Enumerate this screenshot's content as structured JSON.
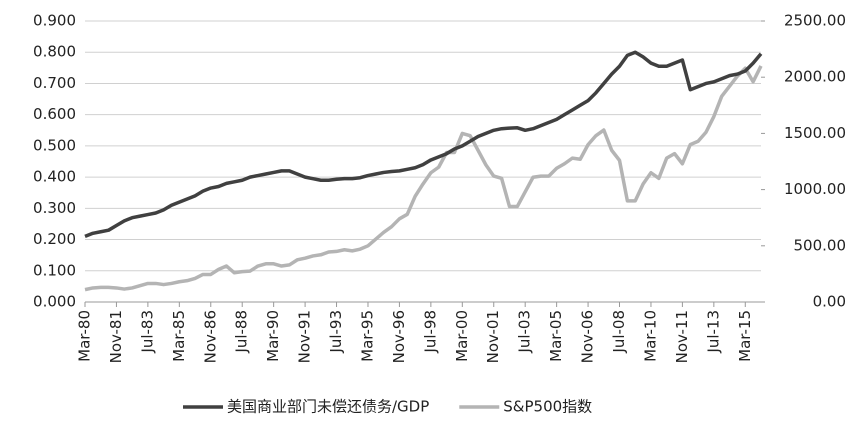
{
  "chart_data": {
    "type": "line",
    "categories": [
      "Mar-80",
      null,
      null,
      null,
      "Nov-81",
      null,
      null,
      null,
      "Jul-83",
      null,
      null,
      null,
      "Mar-85",
      null,
      null,
      null,
      "Nov-86",
      null,
      null,
      null,
      "Jul-88",
      null,
      null,
      null,
      "Mar-90",
      null,
      null,
      null,
      "Nov-91",
      null,
      null,
      null,
      "Jul-93",
      null,
      null,
      null,
      "Mar-95",
      null,
      null,
      null,
      "Nov-96",
      null,
      null,
      null,
      "Jul-98",
      null,
      null,
      null,
      "Mar-00",
      null,
      null,
      null,
      "Nov-01",
      null,
      null,
      null,
      "Jul-03",
      null,
      null,
      null,
      "Mar-05",
      null,
      null,
      null,
      "Nov-06",
      null,
      null,
      null,
      "Jul-08",
      null,
      null,
      null,
      "Mar-10",
      null,
      null,
      null,
      "Nov-11",
      null,
      null,
      null,
      "Jul-13",
      null,
      null,
      null,
      "Mar-15",
      null,
      null
    ],
    "series": [
      {
        "name": "美国商业部门未偿还债务/GDP",
        "color": "#404040",
        "axis": "y",
        "values": [
          0.21,
          0.22,
          0.225,
          0.23,
          0.245,
          0.26,
          0.27,
          0.275,
          0.28,
          0.285,
          0.295,
          0.31,
          0.32,
          0.33,
          0.34,
          0.355,
          0.365,
          0.37,
          0.38,
          0.385,
          0.39,
          0.4,
          0.405,
          0.41,
          0.415,
          0.42,
          0.42,
          0.41,
          0.4,
          0.395,
          0.39,
          0.39,
          0.393,
          0.395,
          0.395,
          0.398,
          0.405,
          0.41,
          0.415,
          0.418,
          0.42,
          0.425,
          0.43,
          0.44,
          0.455,
          0.465,
          0.475,
          0.49,
          0.5,
          0.515,
          0.53,
          0.54,
          0.55,
          0.555,
          0.557,
          0.558,
          0.55,
          0.555,
          0.565,
          0.575,
          0.585,
          0.6,
          0.615,
          0.63,
          0.645,
          0.67,
          0.7,
          0.73,
          0.755,
          0.79,
          0.8,
          0.785,
          0.765,
          0.755,
          0.755,
          0.765,
          0.775,
          0.68,
          0.69,
          0.7,
          0.705,
          0.715,
          0.725,
          0.73,
          0.74,
          0.765,
          0.795
        ]
      },
      {
        "name": "S&P500指数",
        "color": "#b4b4b4",
        "axis": "y2",
        "values": [
          110,
          125,
          130,
          130,
          125,
          115,
          125,
          145,
          165,
          165,
          155,
          165,
          180,
          190,
          210,
          245,
          245,
          290,
          320,
          260,
          270,
          275,
          320,
          340,
          340,
          320,
          330,
          375,
          390,
          410,
          420,
          445,
          450,
          465,
          455,
          470,
          500,
          560,
          620,
          670,
          740,
          780,
          940,
          1050,
          1150,
          1200,
          1330,
          1330,
          1500,
          1480,
          1350,
          1220,
          1120,
          1100,
          850,
          850,
          980,
          1110,
          1120,
          1120,
          1190,
          1230,
          1280,
          1270,
          1400,
          1480,
          1530,
          1350,
          1260,
          900,
          900,
          1050,
          1150,
          1100,
          1280,
          1320,
          1230,
          1400,
          1430,
          1510,
          1650,
          1830,
          1920,
          2010,
          2080,
          1960,
          2100
        ]
      }
    ],
    "ylim": [
      0,
      0.9
    ],
    "yticks": [
      {
        "value": 0,
        "label": "0.000"
      },
      {
        "value": 0.1,
        "label": "0.100"
      },
      {
        "value": 0.2,
        "label": "0.200"
      },
      {
        "value": 0.3,
        "label": "0.300"
      },
      {
        "value": 0.4,
        "label": "0.400"
      },
      {
        "value": 0.5,
        "label": "0.500"
      },
      {
        "value": 0.6,
        "label": "0.600"
      },
      {
        "value": 0.7,
        "label": "0.700"
      },
      {
        "value": 0.8,
        "label": "0.800"
      },
      {
        "value": 0.9,
        "label": "0.900"
      }
    ],
    "y2lim": [
      0,
      2500
    ],
    "y2ticks": [
      {
        "value": 0,
        "label": "0.00"
      },
      {
        "value": 500,
        "label": "500.00"
      },
      {
        "value": 1000,
        "label": "1000.00"
      },
      {
        "value": 1500,
        "label": "1500.00"
      },
      {
        "value": 2000,
        "label": "2000.00"
      },
      {
        "value": 2500,
        "label": "2500.00"
      }
    ],
    "grid": true,
    "legend": "bottom"
  }
}
